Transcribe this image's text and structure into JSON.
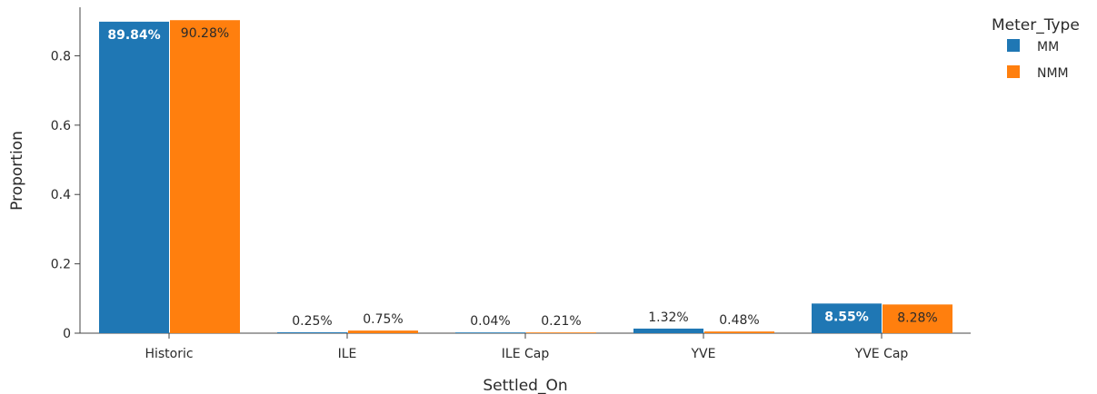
{
  "chart_data": {
    "type": "bar",
    "xlabel": "Settled_On",
    "ylabel": "Proportion",
    "ylim": [
      0,
      0.94
    ],
    "yticks": [
      0,
      0.2,
      0.4,
      0.6,
      0.8
    ],
    "ytick_labels": [
      "0",
      "0.2",
      "0.4",
      "0.6",
      "0.8"
    ],
    "grid": false,
    "legend": {
      "title": "Meter_Type",
      "position": "top-right"
    },
    "categories": [
      "Historic",
      "ILE",
      "ILE Cap",
      "YVE",
      "YVE Cap"
    ],
    "series": [
      {
        "name": "MM",
        "color": "#1f77b4",
        "values": [
          0.8984,
          0.0025,
          0.0004,
          0.0132,
          0.0855
        ],
        "labels": [
          "89.84%",
          "0.25%",
          "0.04%",
          "1.32%",
          "8.55%"
        ]
      },
      {
        "name": "NMM",
        "color": "#ff7f0e",
        "values": [
          0.9028,
          0.0075,
          0.0021,
          0.0048,
          0.0828
        ],
        "labels": [
          "90.28%",
          "0.75%",
          "0.21%",
          "0.48%",
          "8.28%"
        ]
      }
    ]
  }
}
